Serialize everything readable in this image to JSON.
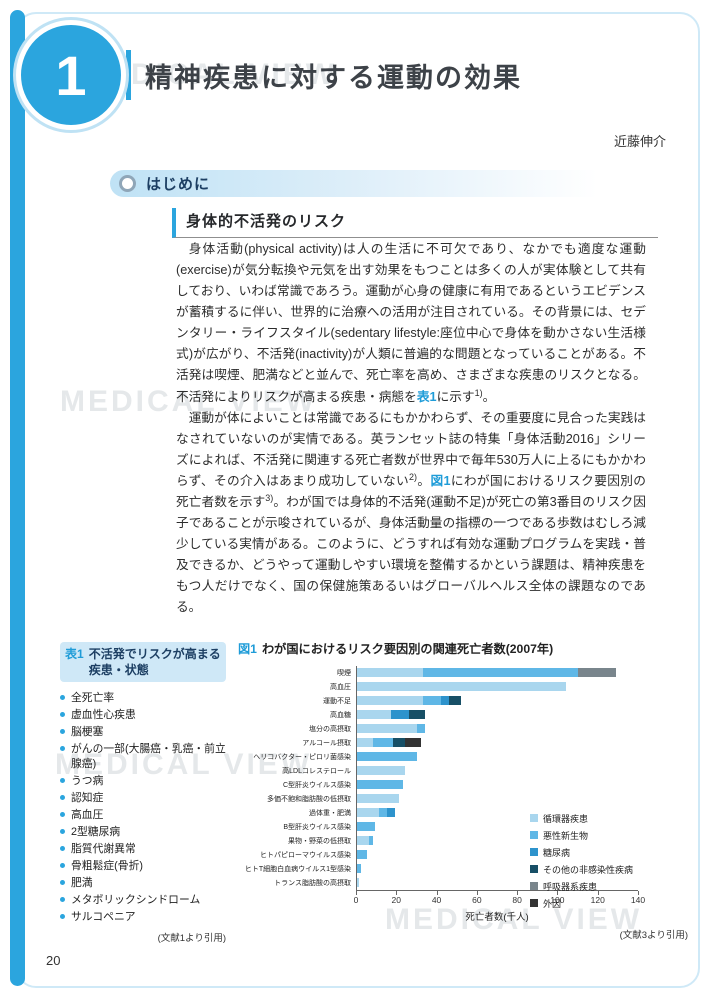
{
  "page": {
    "chapter_number": "1",
    "title": "精神疾患に対する運動の効果",
    "author": "近藤伸介",
    "page_number": "20",
    "watermark": "MEDICAL VIEW"
  },
  "section": {
    "heading": "はじめに",
    "subheading": "身体的不活発のリスク",
    "paragraphs": [
      {
        "segments": [
          {
            "text": "身体活動(physical activity)は人の生活に不可欠であり、なかでも適度な運動(exercise)が気分転換や元気を出す効果をもつことは多くの人が実体験として共有しており、いわば常識であろう。運動が心身の健康に有用であるというエビデンスが蓄積するに伴い、世界的に治療への活用が注目されている。その背景には、セデンタリー・ライフスタイル(sedentary lifestyle:座位中心で身体を動かさない生活様式)が広がり、不活発(inactivity)が人類に普遍的な問題となっていることがある。不活発は喫煙、肥満などと並んで、死亡率を高め、さまざまな疾患のリスクとなる。不活発によりリスクが高まる疾患・病態を"
          },
          {
            "text": "表1",
            "highlight": true
          },
          {
            "text": "に示す"
          },
          {
            "text": "1)",
            "sup": true
          },
          {
            "text": "。"
          }
        ]
      },
      {
        "segments": [
          {
            "text": "運動が体によいことは常識であるにもかかわらず、その重要度に見合った実践はなされていないのが実情である。英ランセット誌の特集「身体活動2016」シリーズによれば、不活発に関連する死亡者数が世界中で毎年530万人に上るにもかかわらず、その介入はあまり成功していない"
          },
          {
            "text": "2)",
            "sup": true
          },
          {
            "text": "。"
          },
          {
            "text": "図1",
            "highlight": true
          },
          {
            "text": "にわが国におけるリスク要因別の死亡者数を示す"
          },
          {
            "text": "3)",
            "sup": true
          },
          {
            "text": "。わが国では身体的不活発(運動不足)が死亡の第3番目のリスク因子であることが示唆されているが、身体活動量の指標の一つである歩数はむしろ減少している実情がある。このように、どうすれば有効な運動プログラムを実践・普及できるか、どうやって運動しやすい環境を整備するかという課題は、精神疾患をもつ人だけでなく、国の保健施策あるいはグローバルヘルス全体の課題なのである。"
          }
        ]
      }
    ]
  },
  "table1": {
    "label": "表1",
    "title": "不活発でリスクが高まる疾患・状態",
    "items": [
      "全死亡率",
      "虚血性心疾患",
      "脳梗塞",
      "がんの一部(大腸癌・乳癌・前立腺癌)",
      "うつ病",
      "認知症",
      "高血圧",
      "2型糖尿病",
      "脂質代謝異常",
      "骨粗鬆症(骨折)",
      "肥満",
      "メタボリックシンドローム",
      "サルコペニア"
    ],
    "source": "(文献1より引用)"
  },
  "figure1": {
    "label": "図1",
    "title": "わが国におけるリスク要因別の関連死亡者数(2007年)",
    "source": "(文献3より引用)"
  },
  "chart_data": {
    "type": "bar",
    "orientation": "horizontal",
    "title": "わが国におけるリスク要因別の関連死亡者数(2007年)",
    "xlabel": "死亡者数(千人)",
    "xlim": [
      0,
      140
    ],
    "xticks": [
      0,
      20,
      40,
      60,
      80,
      100,
      120,
      140
    ],
    "legend_position": "inside-right",
    "grid": false,
    "legend": [
      {
        "key": "circ",
        "label": "循環器疾患",
        "color": "#a9d6ee"
      },
      {
        "key": "cancer",
        "label": "悪性新生物",
        "color": "#5fb7e6"
      },
      {
        "key": "diab",
        "label": "糖尿病",
        "color": "#2d93cc"
      },
      {
        "key": "other",
        "label": "その他の非感染性疾病",
        "color": "#174f66"
      },
      {
        "key": "resp",
        "label": "呼吸器系疾患",
        "color": "#79858c"
      },
      {
        "key": "ext",
        "label": "外因",
        "color": "#333333"
      }
    ],
    "bars": [
      {
        "category": "喫煙",
        "total": 129,
        "segments": [
          {
            "key": "circ",
            "value": 33
          },
          {
            "key": "cancer",
            "value": 77
          },
          {
            "key": "resp",
            "value": 19
          }
        ]
      },
      {
        "category": "高血圧",
        "total": 104,
        "segments": [
          {
            "key": "circ",
            "value": 104
          }
        ]
      },
      {
        "category": "運動不足",
        "total": 52,
        "segments": [
          {
            "key": "circ",
            "value": 33
          },
          {
            "key": "cancer",
            "value": 9
          },
          {
            "key": "diab",
            "value": 4
          },
          {
            "key": "other",
            "value": 6
          }
        ]
      },
      {
        "category": "高血糖",
        "total": 34,
        "segments": [
          {
            "key": "circ",
            "value": 17
          },
          {
            "key": "diab",
            "value": 9
          },
          {
            "key": "other",
            "value": 8
          }
        ]
      },
      {
        "category": "塩分の高摂取",
        "total": 34,
        "segments": [
          {
            "key": "circ",
            "value": 30
          },
          {
            "key": "cancer",
            "value": 4
          }
        ]
      },
      {
        "category": "アルコール摂取",
        "total": 32,
        "segments": [
          {
            "key": "circ",
            "value": 8
          },
          {
            "key": "cancer",
            "value": 10
          },
          {
            "key": "other",
            "value": 6
          },
          {
            "key": "ext",
            "value": 8
          }
        ]
      },
      {
        "category": "ヘリコバクター・ピロリ菌感染",
        "total": 30,
        "segments": [
          {
            "key": "cancer",
            "value": 30
          }
        ]
      },
      {
        "category": "高LDLコレステロール",
        "total": 24,
        "segments": [
          {
            "key": "circ",
            "value": 24
          }
        ]
      },
      {
        "category": "C型肝炎ウイルス感染",
        "total": 23,
        "segments": [
          {
            "key": "cancer",
            "value": 23
          }
        ]
      },
      {
        "category": "多価不飽和脂肪酸の低摂取",
        "total": 21,
        "segments": [
          {
            "key": "circ",
            "value": 21
          }
        ]
      },
      {
        "category": "過体重・肥満",
        "total": 19,
        "segments": [
          {
            "key": "circ",
            "value": 11
          },
          {
            "key": "cancer",
            "value": 4
          },
          {
            "key": "diab",
            "value": 4
          }
        ]
      },
      {
        "category": "B型肝炎ウイルス感染",
        "total": 9,
        "segments": [
          {
            "key": "cancer",
            "value": 9
          }
        ]
      },
      {
        "category": "果物・野菜の低摂取",
        "total": 8,
        "segments": [
          {
            "key": "circ",
            "value": 6
          },
          {
            "key": "cancer",
            "value": 2
          }
        ]
      },
      {
        "category": "ヒトパピローマウイルス感染",
        "total": 5,
        "segments": [
          {
            "key": "cancer",
            "value": 5
          }
        ]
      },
      {
        "category": "ヒトT細胞白血病ウイルス1型感染",
        "total": 2,
        "segments": [
          {
            "key": "cancer",
            "value": 2
          }
        ]
      },
      {
        "category": "トランス脂肪酸の高摂取",
        "total": 1,
        "segments": [
          {
            "key": "circ",
            "value": 1
          }
        ]
      }
    ]
  }
}
